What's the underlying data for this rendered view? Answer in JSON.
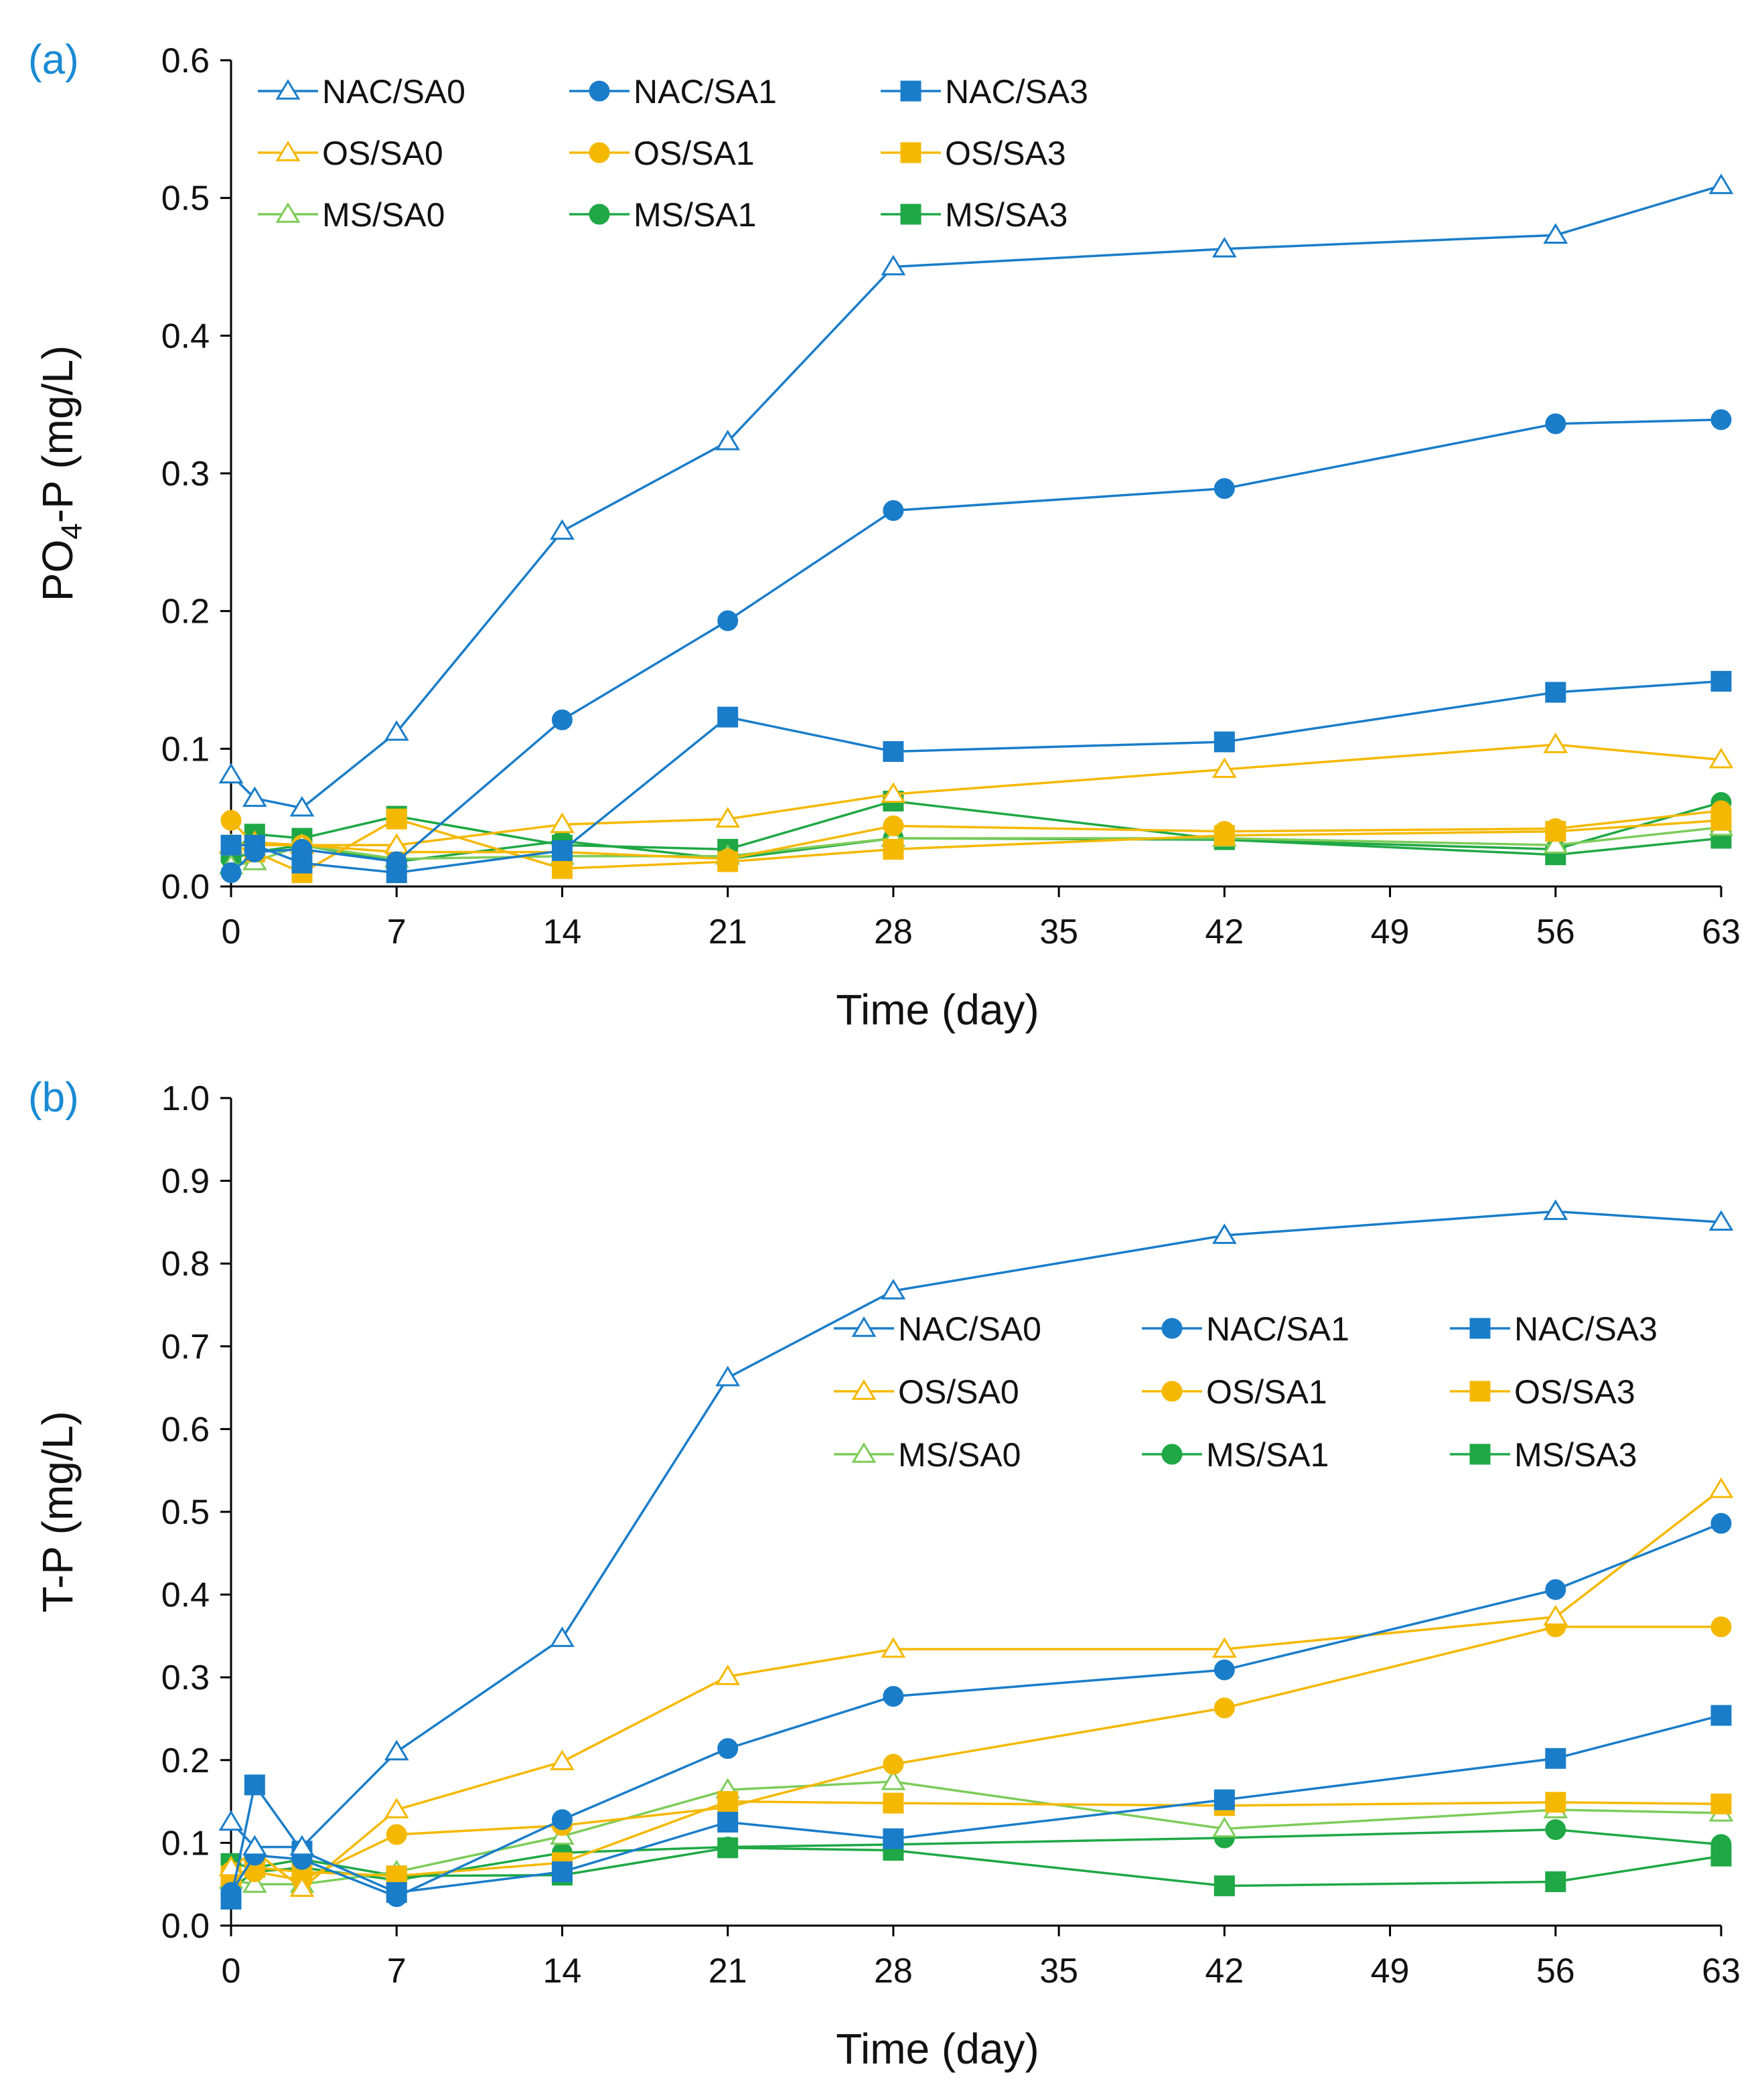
{
  "colors": {
    "NAC": "#1a7dc9",
    "OS": "#f5b800",
    "MS_SA0": "#7dcc5a",
    "MS": "#1fa845"
  },
  "panel_labels": [
    "(a)",
    "(b)"
  ],
  "chart_data": [
    {
      "type": "line",
      "panel": "(a)",
      "xlabel": "Time (day)",
      "ylabel": "PO4-P (mg/L)",
      "ylabel_main": "PO",
      "ylabel_sub": "4",
      "ylabel_rest": "-P (mg/L)",
      "xlim": [
        0,
        63
      ],
      "ylim": [
        0,
        0.6
      ],
      "xticks": [
        0,
        7,
        14,
        21,
        28,
        35,
        42,
        49,
        56,
        63
      ],
      "yticks": [
        0,
        0.1,
        0.2,
        0.3,
        0.4,
        0.5,
        0.6
      ],
      "ytick_labels": [
        "0.0",
        "0.1",
        "0.2",
        "0.3",
        "0.4",
        "0.5",
        "0.6"
      ],
      "legend_position": "top-left",
      "series": [
        {
          "name": "NAC/SA0",
          "color_key": "NAC",
          "marker": "triangle",
          "filled": false,
          "x": [
            0,
            1,
            3,
            7,
            14,
            21,
            28,
            42,
            56,
            63
          ],
          "y": [
            0.081,
            0.064,
            0.057,
            0.112,
            0.258,
            0.323,
            0.45,
            0.463,
            0.473,
            0.509
          ]
        },
        {
          "name": "NAC/SA1",
          "color_key": "NAC",
          "marker": "circle",
          "filled": true,
          "x": [
            0,
            1,
            3,
            7,
            14,
            21,
            28,
            42,
            56,
            63
          ],
          "y": [
            0.01,
            0.025,
            0.027,
            0.018,
            0.121,
            0.193,
            0.273,
            0.289,
            0.336,
            0.339
          ]
        },
        {
          "name": "NAC/SA3",
          "color_key": "NAC",
          "marker": "square",
          "filled": true,
          "x": [
            0,
            1,
            3,
            7,
            14,
            21,
            28,
            42,
            56,
            63
          ],
          "y": [
            0.03,
            0.03,
            0.017,
            0.01,
            0.026,
            0.123,
            0.098,
            0.105,
            0.141,
            0.149
          ]
        },
        {
          "name": "OS/SA0",
          "color_key": "OS",
          "marker": "triangle",
          "filled": false,
          "x": [
            0,
            1,
            3,
            7,
            14,
            21,
            28,
            42,
            56,
            63
          ],
          "y": [
            0.03,
            0.032,
            0.03,
            0.03,
            0.045,
            0.049,
            0.067,
            0.085,
            0.103,
            0.092
          ]
        },
        {
          "name": "OS/SA1",
          "color_key": "OS",
          "marker": "circle",
          "filled": true,
          "x": [
            0,
            1,
            3,
            7,
            14,
            21,
            28,
            42,
            56,
            63
          ],
          "y": [
            0.048,
            0.03,
            0.03,
            0.025,
            0.025,
            0.02,
            0.044,
            0.04,
            0.042,
            0.055
          ]
        },
        {
          "name": "OS/SA3",
          "color_key": "OS",
          "marker": "square",
          "filled": true,
          "x": [
            0,
            1,
            3,
            7,
            14,
            21,
            28,
            42,
            56,
            63
          ],
          "y": [
            0.03,
            0.025,
            0.01,
            0.049,
            0.013,
            0.018,
            0.027,
            0.037,
            0.04,
            0.048
          ]
        },
        {
          "name": "MS/SA0",
          "color_key": "MS_SA0",
          "marker": "triangle",
          "filled": false,
          "x": [
            0,
            1,
            3,
            7,
            14,
            21,
            28,
            42,
            56,
            63
          ],
          "y": [
            0.015,
            0.018,
            0.03,
            0.02,
            0.022,
            0.022,
            0.035,
            0.035,
            0.03,
            0.043
          ]
        },
        {
          "name": "MS/SA1",
          "color_key": "MS",
          "marker": "circle",
          "filled": true,
          "x": [
            0,
            1,
            3,
            7,
            14,
            21,
            28,
            42,
            56,
            63
          ],
          "y": [
            0.02,
            0.025,
            0.03,
            0.018,
            0.033,
            0.02,
            0.035,
            0.034,
            0.027,
            0.061
          ]
        },
        {
          "name": "MS/SA3",
          "color_key": "MS",
          "marker": "square",
          "filled": true,
          "x": [
            0,
            1,
            3,
            7,
            14,
            21,
            28,
            42,
            56,
            63
          ],
          "y": [
            0.025,
            0.038,
            0.035,
            0.051,
            0.03,
            0.027,
            0.062,
            0.034,
            0.023,
            0.035
          ]
        }
      ]
    },
    {
      "type": "line",
      "panel": "(b)",
      "xlabel": "Time (day)",
      "ylabel": "T-P (mg/L)",
      "xlim": [
        0,
        63
      ],
      "ylim": [
        0,
        1.0
      ],
      "xticks": [
        0,
        7,
        14,
        21,
        28,
        35,
        42,
        49,
        56,
        63
      ],
      "yticks": [
        0,
        0.1,
        0.2,
        0.3,
        0.4,
        0.5,
        0.6,
        0.7,
        0.8,
        0.9,
        1.0
      ],
      "ytick_labels": [
        "0.0",
        "0.1",
        "0.2",
        "0.3",
        "0.4",
        "0.5",
        "0.6",
        "0.7",
        "0.8",
        "0.9",
        "1.0"
      ],
      "legend_position": "center-right",
      "series": [
        {
          "name": "NAC/SA0",
          "color_key": "NAC",
          "marker": "triangle",
          "filled": false,
          "x": [
            0,
            1,
            3,
            7,
            14,
            21,
            28,
            42,
            56,
            63
          ],
          "y": [
            0.125,
            0.095,
            0.095,
            0.21,
            0.347,
            0.662,
            0.767,
            0.834,
            0.863,
            0.85
          ]
        },
        {
          "name": "NAC/SA1",
          "color_key": "NAC",
          "marker": "circle",
          "filled": true,
          "x": [
            0,
            1,
            3,
            7,
            14,
            21,
            28,
            42,
            56,
            63
          ],
          "y": [
            0.04,
            0.085,
            0.08,
            0.035,
            0.128,
            0.214,
            0.277,
            0.309,
            0.406,
            0.486
          ]
        },
        {
          "name": "NAC/SA3",
          "color_key": "NAC",
          "marker": "square",
          "filled": true,
          "x": [
            0,
            1,
            3,
            7,
            14,
            21,
            28,
            42,
            56,
            63
          ],
          "y": [
            0.032,
            0.17,
            0.09,
            0.04,
            0.065,
            0.125,
            0.105,
            0.152,
            0.202,
            0.254
          ]
        },
        {
          "name": "OS/SA0",
          "color_key": "OS",
          "marker": "triangle",
          "filled": false,
          "x": [
            0,
            1,
            3,
            7,
            14,
            21,
            28,
            42,
            56,
            63
          ],
          "y": [
            0.07,
            0.09,
            0.045,
            0.14,
            0.198,
            0.301,
            0.334,
            0.334,
            0.373,
            0.527
          ]
        },
        {
          "name": "OS/SA1",
          "color_key": "OS",
          "marker": "circle",
          "filled": true,
          "x": [
            0,
            1,
            3,
            7,
            14,
            21,
            28,
            42,
            56,
            63
          ],
          "y": [
            0.065,
            0.065,
            0.055,
            0.11,
            0.121,
            0.143,
            0.195,
            0.263,
            0.361,
            0.361
          ]
        },
        {
          "name": "OS/SA3",
          "color_key": "OS",
          "marker": "square",
          "filled": true,
          "x": [
            0,
            1,
            3,
            7,
            14,
            21,
            28,
            42,
            56,
            63
          ],
          "y": [
            0.06,
            0.07,
            0.065,
            0.06,
            0.076,
            0.15,
            0.148,
            0.145,
            0.149,
            0.147
          ]
        },
        {
          "name": "MS/SA0",
          "color_key": "MS_SA0",
          "marker": "triangle",
          "filled": false,
          "x": [
            0,
            1,
            3,
            7,
            14,
            21,
            28,
            42,
            56,
            63
          ],
          "y": [
            0.055,
            0.05,
            0.05,
            0.065,
            0.108,
            0.164,
            0.174,
            0.117,
            0.14,
            0.136
          ]
        },
        {
          "name": "MS/SA1",
          "color_key": "MS",
          "marker": "circle",
          "filled": true,
          "x": [
            0,
            1,
            3,
            7,
            14,
            21,
            28,
            42,
            56,
            63
          ],
          "y": [
            0.045,
            0.065,
            0.07,
            0.055,
            0.088,
            0.095,
            0.098,
            0.106,
            0.116,
            0.098
          ]
        },
        {
          "name": "MS/SA3",
          "color_key": "MS",
          "marker": "square",
          "filled": true,
          "x": [
            0,
            1,
            3,
            7,
            14,
            21,
            28,
            42,
            56,
            63
          ],
          "y": [
            0.075,
            0.07,
            0.08,
            0.06,
            0.061,
            0.094,
            0.091,
            0.048,
            0.053,
            0.084
          ]
        }
      ]
    }
  ]
}
